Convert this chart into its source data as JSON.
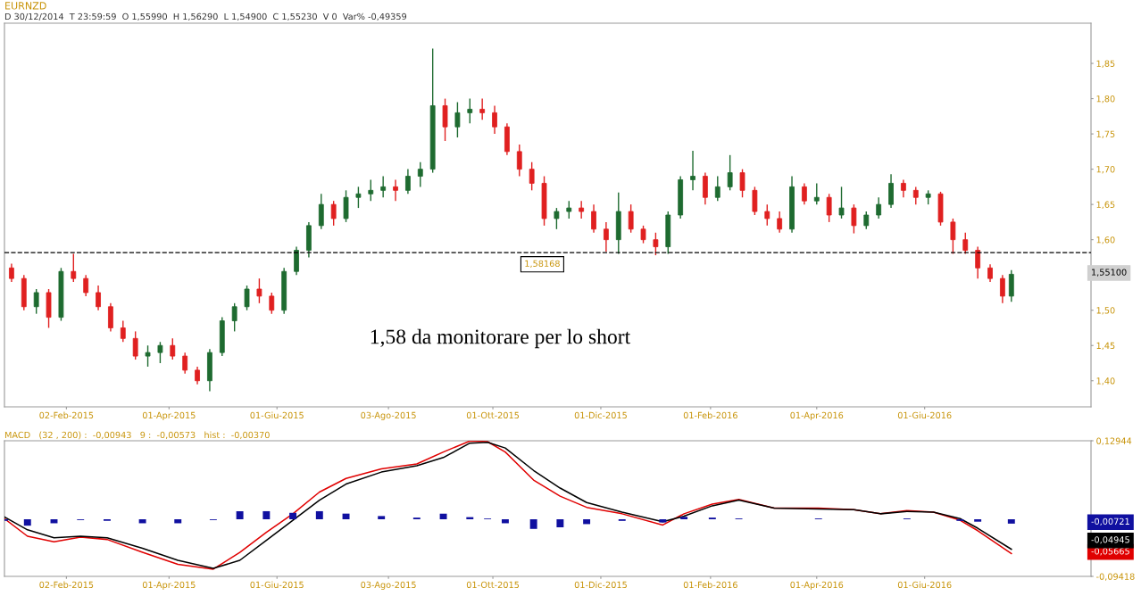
{
  "chart_data": [
    {
      "type": "candlestick",
      "title": "EURNZD",
      "subtitle": "D 30/12/2014  T 23:59:59  O 1,55990  H 1,56290  L 1,54900  C 1,55230  V 0  Var% -0,49359",
      "x": [
        "2015-01-02",
        "2015-01-09",
        "2015-01-16",
        "2015-01-23",
        "2015-01-30",
        "2015-02-06",
        "2015-02-13",
        "2015-02-20",
        "2015-02-27",
        "2015-03-06",
        "2015-03-13",
        "2015-03-20",
        "2015-03-27",
        "2015-04-03",
        "2015-04-10",
        "2015-04-17",
        "2015-04-24",
        "2015-05-01",
        "2015-05-08",
        "2015-05-15",
        "2015-05-22",
        "2015-05-29",
        "2015-06-05",
        "2015-06-12",
        "2015-06-19",
        "2015-06-26",
        "2015-07-03",
        "2015-07-10",
        "2015-07-17",
        "2015-07-24",
        "2015-07-31",
        "2015-08-07",
        "2015-08-14",
        "2015-08-21",
        "2015-08-28",
        "2015-09-04",
        "2015-09-11",
        "2015-09-18",
        "2015-09-25",
        "2015-10-02",
        "2015-10-09",
        "2015-10-16",
        "2015-10-23",
        "2015-10-30",
        "2015-11-06",
        "2015-11-13",
        "2015-11-20",
        "2015-11-27",
        "2015-12-04",
        "2015-12-11",
        "2015-12-18",
        "2015-12-25",
        "2016-01-01",
        "2016-01-08",
        "2016-01-15",
        "2016-01-22",
        "2016-01-29",
        "2016-02-05",
        "2016-02-12",
        "2016-02-19",
        "2016-02-26",
        "2016-03-04",
        "2016-03-11",
        "2016-03-18",
        "2016-03-25",
        "2016-04-01",
        "2016-04-08",
        "2016-04-15",
        "2016-04-22",
        "2016-04-29",
        "2016-05-06",
        "2016-05-13",
        "2016-05-20",
        "2016-05-27",
        "2016-06-03",
        "2016-06-10",
        "2016-06-17",
        "2016-06-24",
        "2016-07-01",
        "2016-07-08",
        "2016-07-15",
        "2016-07-20"
      ],
      "ohlc": [
        [
          1.56,
          1.566,
          1.54,
          1.545
        ],
        [
          1.545,
          1.55,
          1.5,
          1.505
        ],
        [
          1.505,
          1.53,
          1.495,
          1.525
        ],
        [
          1.525,
          1.53,
          1.475,
          1.49
        ],
        [
          1.49,
          1.56,
          1.485,
          1.555
        ],
        [
          1.555,
          1.58,
          1.54,
          1.545
        ],
        [
          1.545,
          1.55,
          1.52,
          1.525
        ],
        [
          1.525,
          1.535,
          1.5,
          1.505
        ],
        [
          1.505,
          1.51,
          1.47,
          1.475
        ],
        [
          1.475,
          1.485,
          1.455,
          1.46
        ],
        [
          1.46,
          1.47,
          1.43,
          1.435
        ],
        [
          1.435,
          1.45,
          1.42,
          1.44
        ],
        [
          1.44,
          1.455,
          1.425,
          1.45
        ],
        [
          1.45,
          1.46,
          1.43,
          1.435
        ],
        [
          1.435,
          1.44,
          1.41,
          1.415
        ],
        [
          1.415,
          1.42,
          1.395,
          1.4
        ],
        [
          1.4,
          1.445,
          1.385,
          1.44
        ],
        [
          1.44,
          1.49,
          1.435,
          1.485
        ],
        [
          1.485,
          1.51,
          1.47,
          1.505
        ],
        [
          1.505,
          1.535,
          1.5,
          1.53
        ],
        [
          1.53,
          1.545,
          1.51,
          1.52
        ],
        [
          1.52,
          1.525,
          1.495,
          1.5
        ],
        [
          1.5,
          1.56,
          1.495,
          1.555
        ],
        [
          1.555,
          1.59,
          1.55,
          1.585
        ],
        [
          1.585,
          1.625,
          1.575,
          1.62
        ],
        [
          1.62,
          1.665,
          1.615,
          1.65
        ],
        [
          1.65,
          1.655,
          1.62,
          1.63
        ],
        [
          1.63,
          1.67,
          1.625,
          1.66
        ],
        [
          1.66,
          1.675,
          1.645,
          1.665
        ],
        [
          1.665,
          1.685,
          1.655,
          1.67
        ],
        [
          1.67,
          1.69,
          1.66,
          1.675
        ],
        [
          1.675,
          1.685,
          1.655,
          1.67
        ],
        [
          1.67,
          1.7,
          1.665,
          1.69
        ],
        [
          1.69,
          1.71,
          1.675,
          1.7
        ],
        [
          1.7,
          1.871,
          1.695,
          1.79
        ],
        [
          1.79,
          1.8,
          1.74,
          1.76
        ],
        [
          1.76,
          1.795,
          1.745,
          1.78
        ],
        [
          1.78,
          1.8,
          1.765,
          1.785
        ],
        [
          1.785,
          1.8,
          1.77,
          1.78
        ],
        [
          1.78,
          1.79,
          1.75,
          1.76
        ],
        [
          1.76,
          1.765,
          1.72,
          1.725
        ],
        [
          1.725,
          1.735,
          1.69,
          1.7
        ],
        [
          1.7,
          1.71,
          1.67,
          1.68
        ],
        [
          1.68,
          1.69,
          1.62,
          1.63
        ],
        [
          1.63,
          1.645,
          1.615,
          1.64
        ],
        [
          1.64,
          1.655,
          1.63,
          1.645
        ],
        [
          1.645,
          1.655,
          1.63,
          1.64
        ],
        [
          1.64,
          1.65,
          1.61,
          1.615
        ],
        [
          1.615,
          1.625,
          1.583,
          1.6
        ],
        [
          1.6,
          1.667,
          1.58,
          1.64
        ],
        [
          1.64,
          1.65,
          1.61,
          1.615
        ],
        [
          1.615,
          1.62,
          1.595,
          1.6
        ],
        [
          1.6,
          1.61,
          1.578,
          1.59
        ],
        [
          1.59,
          1.64,
          1.58,
          1.635
        ],
        [
          1.635,
          1.69,
          1.63,
          1.685
        ],
        [
          1.685,
          1.726,
          1.67,
          1.69
        ],
        [
          1.69,
          1.695,
          1.65,
          1.66
        ],
        [
          1.66,
          1.69,
          1.655,
          1.675
        ],
        [
          1.675,
          1.72,
          1.67,
          1.695
        ],
        [
          1.695,
          1.7,
          1.66,
          1.67
        ],
        [
          1.67,
          1.675,
          1.635,
          1.64
        ],
        [
          1.64,
          1.65,
          1.62,
          1.63
        ],
        [
          1.63,
          1.64,
          1.61,
          1.615
        ],
        [
          1.615,
          1.69,
          1.61,
          1.675
        ],
        [
          1.675,
          1.68,
          1.65,
          1.655
        ],
        [
          1.655,
          1.68,
          1.65,
          1.66
        ],
        [
          1.66,
          1.665,
          1.625,
          1.635
        ],
        [
          1.635,
          1.675,
          1.63,
          1.645
        ],
        [
          1.645,
          1.65,
          1.609,
          1.62
        ],
        [
          1.62,
          1.64,
          1.615,
          1.635
        ],
        [
          1.635,
          1.66,
          1.63,
          1.65
        ],
        [
          1.65,
          1.693,
          1.645,
          1.68
        ],
        [
          1.68,
          1.685,
          1.66,
          1.67
        ],
        [
          1.67,
          1.675,
          1.65,
          1.66
        ],
        [
          1.66,
          1.67,
          1.65,
          1.665
        ],
        [
          1.665,
          1.668,
          1.62,
          1.625
        ],
        [
          1.625,
          1.63,
          1.58,
          1.6
        ],
        [
          1.6,
          1.61,
          1.58,
          1.585
        ],
        [
          1.585,
          1.59,
          1.545,
          1.56
        ],
        [
          1.56,
          1.565,
          1.54,
          1.545
        ],
        [
          1.545,
          1.55,
          1.51,
          1.52
        ],
        [
          1.52,
          1.557,
          1.512,
          1.551
        ]
      ],
      "colors": [
        "#e02020",
        "#e02020",
        "#1e6b30",
        "#e02020",
        "#1e6b30",
        "#e02020",
        "#e02020",
        "#e02020",
        "#e02020",
        "#e02020",
        "#e02020",
        "#1e6b30",
        "#1e6b30",
        "#e02020",
        "#e02020",
        "#e02020",
        "#1e6b30",
        "#1e6b30",
        "#1e6b30",
        "#1e6b30",
        "#e02020",
        "#e02020",
        "#1e6b30",
        "#1e6b30",
        "#1e6b30",
        "#1e6b30",
        "#e02020",
        "#1e6b30",
        "#1e6b30",
        "#1e6b30",
        "#1e6b30",
        "#e02020",
        "#1e6b30",
        "#1e6b30",
        "#1e6b30",
        "#e02020",
        "#1e6b30",
        "#1e6b30",
        "#e02020",
        "#e02020",
        "#e02020",
        "#e02020",
        "#e02020",
        "#e02020",
        "#1e6b30",
        "#1e6b30",
        "#e02020",
        "#e02020",
        "#e02020",
        "#1e6b30",
        "#e02020",
        "#e02020",
        "#e02020",
        "#1e6b30",
        "#1e6b30",
        "#1e6b30",
        "#e02020",
        "#1e6b30",
        "#1e6b30",
        "#e02020",
        "#e02020",
        "#e02020",
        "#e02020",
        "#1e6b30",
        "#e02020",
        "#1e6b30",
        "#e02020",
        "#1e6b30",
        "#e02020",
        "#1e6b30",
        "#1e6b30",
        "#1e6b30",
        "#e02020",
        "#e02020",
        "#1e6b30",
        "#e02020",
        "#e02020",
        "#e02020",
        "#e02020",
        "#e02020",
        "#e02020",
        "#1e6b30"
      ],
      "xlim": [
        "2014-12-29",
        "2016-09-03"
      ],
      "xticks": [
        {
          "value": "2015-02-02",
          "label": "02-Feb-2015"
        },
        {
          "value": "2015-04-01",
          "label": "01-Apr-2015"
        },
        {
          "value": "2015-06-01",
          "label": "01-Giu-2015"
        },
        {
          "value": "2015-08-03",
          "label": "03-Ago-2015"
        },
        {
          "value": "2015-10-01",
          "label": "01-Ott-2015"
        },
        {
          "value": "2015-12-01",
          "label": "01-Dic-2015"
        },
        {
          "value": "2016-02-01",
          "label": "01-Feb-2016"
        },
        {
          "value": "2016-04-01",
          "label": "01-Apr-2016"
        },
        {
          "value": "2016-06-01",
          "label": "01-Giu-2016"
        }
      ],
      "ylim": [
        1.363,
        1.907
      ],
      "yticks": [
        {
          "value": 1.4,
          "label": "1,40"
        },
        {
          "value": 1.45,
          "label": "1,45"
        },
        {
          "value": 1.5,
          "label": "1,50"
        },
        {
          "value": 1.55,
          "label": null
        },
        {
          "value": 1.6,
          "label": "1,60"
        },
        {
          "value": 1.65,
          "label": "1,65"
        },
        {
          "value": 1.7,
          "label": "1,70"
        },
        {
          "value": 1.75,
          "label": "1,75"
        },
        {
          "value": 1.8,
          "label": "1,80"
        },
        {
          "value": 1.85,
          "label": "1,85"
        }
      ],
      "ref_lines": [
        {
          "axis": "y",
          "value": 1.58168,
          "label": "1,58168",
          "color": "#000000",
          "line_style": "dashed"
        }
      ],
      "annotations": [
        "1,58 da monitorare per lo short",
        "1,55100"
      ]
    },
    {
      "type": "line",
      "title": "MACD   (32 , 200) :  -0,00943   9 :  -0,00573   hist :  -0,00370",
      "x": [
        "2014-12-29",
        "2015-01-11",
        "2015-01-26",
        "2015-02-10",
        "2015-02-25",
        "2015-03-17",
        "2015-04-06",
        "2015-04-26",
        "2015-05-11",
        "2015-05-26",
        "2015-06-10",
        "2015-06-25",
        "2015-07-10",
        "2015-07-30",
        "2015-08-19",
        "2015-09-03",
        "2015-09-18",
        "2015-09-28",
        "2015-10-08",
        "2015-10-24",
        "2015-11-08",
        "2015-11-23",
        "2015-12-13",
        "2016-01-05",
        "2016-01-17",
        "2016-02-02",
        "2016-02-17",
        "2016-03-08",
        "2016-04-02",
        "2016-04-22",
        "2016-05-07",
        "2016-05-22",
        "2016-06-06",
        "2016-06-21",
        "2016-07-01",
        "2016-07-20"
      ],
      "series": [
        {
          "type": "line",
          "color": "#e00000",
          "values": [
            0.0011,
            -0.028,
            -0.0373,
            -0.0293,
            -0.0333,
            -0.0545,
            -0.0743,
            -0.0823,
            -0.0545,
            -0.0214,
            0.009,
            0.0448,
            0.0673,
            0.0831,
            0.0911,
            0.1109,
            0.129,
            0.128,
            0.1109,
            0.0646,
            0.0381,
            0.0196,
            0.009,
            -0.0095,
            0.009,
            0.0249,
            0.0328,
            0.0183,
            0.0183,
            0.0157,
            0.009,
            0.0143,
            0.0117,
            -0.0016,
            -0.0188,
            -0.05665
          ]
        },
        {
          "type": "line",
          "color": "#000000",
          "values": [
            0.0037,
            -0.0174,
            -0.0307,
            -0.028,
            -0.0307,
            -0.0479,
            -0.0677,
            -0.081,
            -0.0677,
            -0.0347,
            -0.0016,
            0.0315,
            0.058,
            0.0778,
            0.0884,
            0.1017,
            0.1255,
            0.1268,
            0.1175,
            0.0805,
            0.0514,
            0.0276,
            0.0117,
            -0.0042,
            0.005,
            0.0222,
            0.0315,
            0.0183,
            0.017,
            0.0157,
            0.009,
            0.013,
            0.0117,
            0.0011,
            -0.0148,
            -0.04945
          ]
        },
        {
          "type": "bar",
          "color": "#1010a0",
          "values": [
            -0.0026,
            -0.0106,
            -0.0066,
            -0.0013,
            -0.0026,
            -0.0066,
            -0.0066,
            -0.0013,
            0.0132,
            0.0133,
            0.0106,
            0.0133,
            0.0093,
            0.0053,
            0.0027,
            0.0092,
            0.0035,
            0.0012,
            -0.0066,
            -0.0159,
            -0.0133,
            -0.008,
            -0.0027,
            -0.0053,
            0.004,
            0.0027,
            0.0013,
            0,
            0.0013,
            0,
            0,
            0.0013,
            0,
            -0.0027,
            -0.004,
            -0.00721
          ]
        }
      ],
      "xlim": [
        "2014-12-29",
        "2016-09-03"
      ],
      "xticks": [
        {
          "value": "2015-02-02",
          "label": "02-Feb-2015"
        },
        {
          "value": "2015-04-01",
          "label": "01-Apr-2015"
        },
        {
          "value": "2015-06-01",
          "label": "01-Giu-2015"
        },
        {
          "value": "2015-08-03",
          "label": "03-Ago-2015"
        },
        {
          "value": "2015-10-01",
          "label": "01-Ott-2015"
        },
        {
          "value": "2015-12-01",
          "label": "01-Dic-2015"
        },
        {
          "value": "2016-02-01",
          "label": "01-Feb-2016"
        },
        {
          "value": "2016-04-01",
          "label": "01-Apr-2016"
        },
        {
          "value": "2016-06-01",
          "label": "01-Giu-2016"
        }
      ],
      "ylim": [
        -0.09418,
        0.12944
      ],
      "yticks": [
        {
          "value": -0.09418,
          "label": "-0,09418"
        },
        {
          "value": 0.12944,
          "label": "0,12944"
        }
      ],
      "annotations": [
        "-0,05665",
        "-0,04945",
        "-0,00721"
      ]
    }
  ]
}
